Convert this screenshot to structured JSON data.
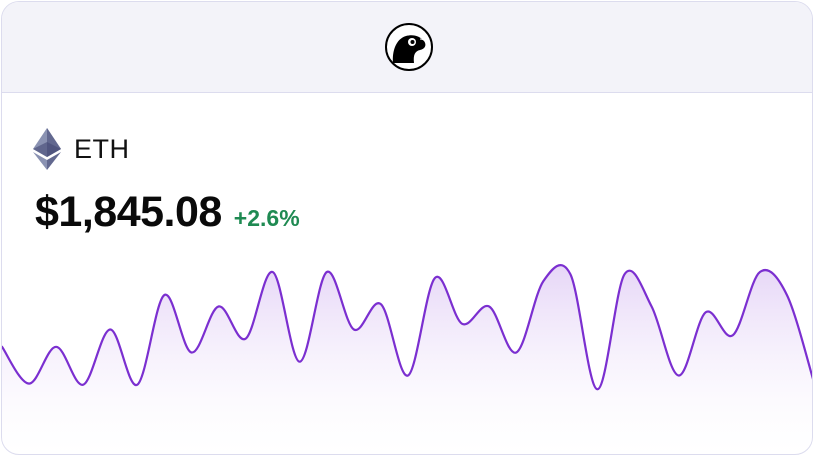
{
  "header": {
    "logo_icon": "gecko-logo-icon"
  },
  "asset": {
    "icon": "ethereum-icon",
    "symbol": "ETH",
    "price": "$1,845.08",
    "change": "+2.6%",
    "change_color": "#1f8a52"
  },
  "chart_data": {
    "type": "area",
    "line_color": "#7b2fd0",
    "fill_color": "#e9dcf8",
    "values": [
      0.35,
      0.03,
      0.35,
      0.02,
      0.5,
      0.02,
      0.8,
      0.3,
      0.7,
      0.42,
      1.0,
      0.22,
      1.0,
      0.5,
      0.72,
      0.1,
      0.95,
      0.55,
      0.7,
      0.3,
      0.92,
      0.98,
      -0.02,
      0.98,
      0.7,
      0.1,
      0.65,
      0.45,
      1.0,
      0.8,
      0.04
    ]
  }
}
